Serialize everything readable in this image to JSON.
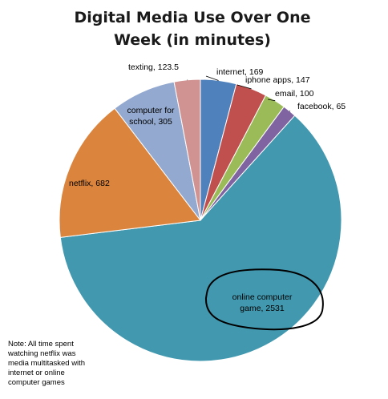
{
  "chart_data": {
    "type": "pie",
    "title": "Digital Media Use Over One Week (in minutes)",
    "slices": [
      {
        "label": "internet",
        "value": 169,
        "text": "internet, 169",
        "color": "#4f81bd"
      },
      {
        "label": "iphone apps",
        "value": 147,
        "text": "iphone apps, 147",
        "color": "#c0504d"
      },
      {
        "label": "email",
        "value": 100,
        "text": "email, 100",
        "color": "#9bbb59"
      },
      {
        "label": "facebook",
        "value": 65,
        "text": "facebook, 65",
        "color": "#8064a2"
      },
      {
        "label": "online computer game",
        "value": 2531,
        "text": "online computer game, 2531",
        "color": "#4198af"
      },
      {
        "label": "netflix",
        "value": 682,
        "text": "netflix, 682",
        "color": "#db843d"
      },
      {
        "label": "computer for school",
        "value": 305,
        "text": "computer for school, 305",
        "color": "#93a9cf"
      },
      {
        "label": "texting",
        "value": 123.5,
        "text": "texting, 123.5",
        "color": "#d19392"
      }
    ],
    "annotation": "hand-drawn circle around online computer game"
  },
  "note": "Note: All time spent watching netflix was media multitasked with internet or online computer games"
}
